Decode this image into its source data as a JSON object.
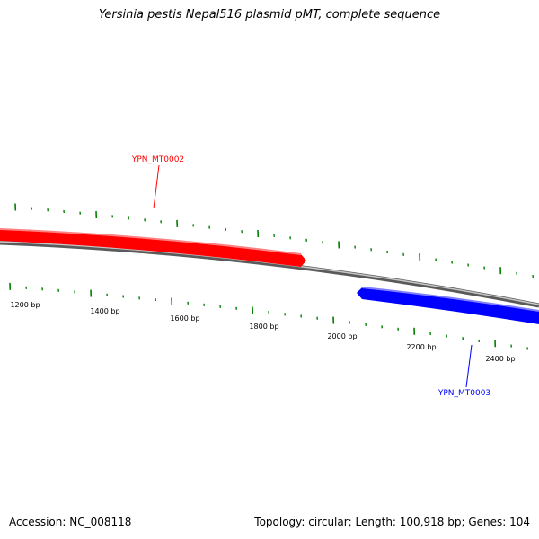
{
  "title": "Yersinia pestis Nepal516 plasmid pMT, complete sequence",
  "footer": {
    "accession": "Accession: NC_008118",
    "summary": "Topology: circular; Length: 100,918 bp; Genes: 104"
  },
  "colors": {
    "forward_gene": "#ff0000",
    "reverse_gene": "#0000ff",
    "backbone": "#888888",
    "ticks": "#008000",
    "ruler_text": "#000000"
  },
  "genes": [
    {
      "id": "YPN_MT0002",
      "strand": "forward",
      "color": "#ff0000"
    },
    {
      "id": "YPN_MT0003",
      "strand": "reverse",
      "color": "#0000ff"
    }
  ],
  "ruler": {
    "labels": [
      "1200 bp",
      "1400 bp",
      "1600 bp",
      "1800 bp",
      "2000 bp",
      "2200 bp",
      "2400 bp"
    ]
  }
}
